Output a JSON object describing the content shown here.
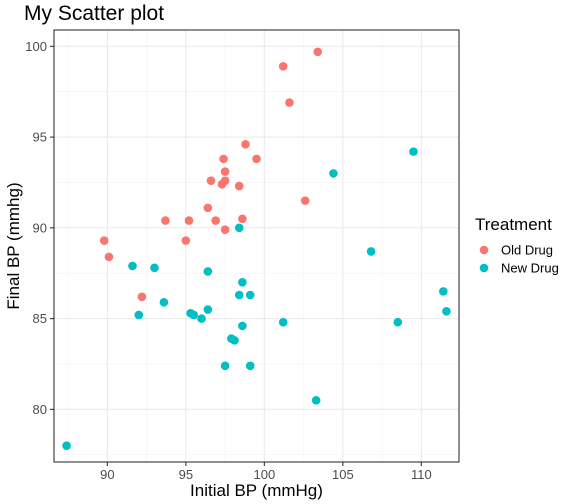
{
  "chart_data": {
    "type": "scatter",
    "title": "My Scatter plot",
    "xlabel": "Initial BP (mmHg)",
    "ylabel": "Final BP (mmhg)",
    "xlim": [
      86.6,
      112.4
    ],
    "ylim": [
      77.1,
      100.9
    ],
    "xticks": [
      90,
      95,
      100,
      105,
      110
    ],
    "yticks": [
      80,
      85,
      90,
      95,
      100
    ],
    "grid": true,
    "legend": {
      "title": "Treatment",
      "position": "right"
    },
    "series": [
      {
        "name": "Old Drug",
        "color": "#F8766D",
        "points": [
          [
            89.8,
            89.3
          ],
          [
            90.1,
            88.4
          ],
          [
            92.2,
            86.2
          ],
          [
            93.7,
            90.4
          ],
          [
            95.0,
            89.3
          ],
          [
            95.2,
            90.4
          ],
          [
            96.4,
            91.1
          ],
          [
            96.6,
            92.6
          ],
          [
            96.9,
            90.4
          ],
          [
            97.3,
            92.4
          ],
          [
            97.4,
            93.8
          ],
          [
            97.5,
            93.1
          ],
          [
            97.5,
            92.6
          ],
          [
            97.5,
            89.9
          ],
          [
            98.4,
            92.3
          ],
          [
            98.6,
            90.5
          ],
          [
            98.8,
            94.6
          ],
          [
            99.5,
            93.8
          ],
          [
            101.2,
            98.9
          ],
          [
            101.6,
            96.9
          ],
          [
            102.6,
            91.5
          ],
          [
            103.4,
            99.7
          ]
        ]
      },
      {
        "name": "New Drug",
        "color": "#00BFC4",
        "points": [
          [
            87.4,
            78.0
          ],
          [
            91.6,
            87.9
          ],
          [
            92.0,
            85.2
          ],
          [
            93.0,
            87.8
          ],
          [
            93.6,
            85.9
          ],
          [
            95.3,
            85.3
          ],
          [
            95.5,
            85.2
          ],
          [
            96.0,
            85.0
          ],
          [
            96.4,
            87.6
          ],
          [
            96.4,
            85.5
          ],
          [
            97.5,
            82.4
          ],
          [
            97.9,
            83.9
          ],
          [
            98.1,
            83.8
          ],
          [
            98.4,
            90.0
          ],
          [
            98.4,
            86.3
          ],
          [
            98.6,
            87.0
          ],
          [
            98.6,
            84.6
          ],
          [
            99.1,
            86.3
          ],
          [
            99.1,
            82.4
          ],
          [
            101.2,
            84.8
          ],
          [
            103.3,
            80.5
          ],
          [
            104.4,
            93.0
          ],
          [
            106.8,
            88.7
          ],
          [
            108.5,
            84.8
          ],
          [
            109.5,
            94.2
          ],
          [
            111.4,
            86.5
          ],
          [
            111.6,
            85.4
          ]
        ]
      }
    ]
  }
}
